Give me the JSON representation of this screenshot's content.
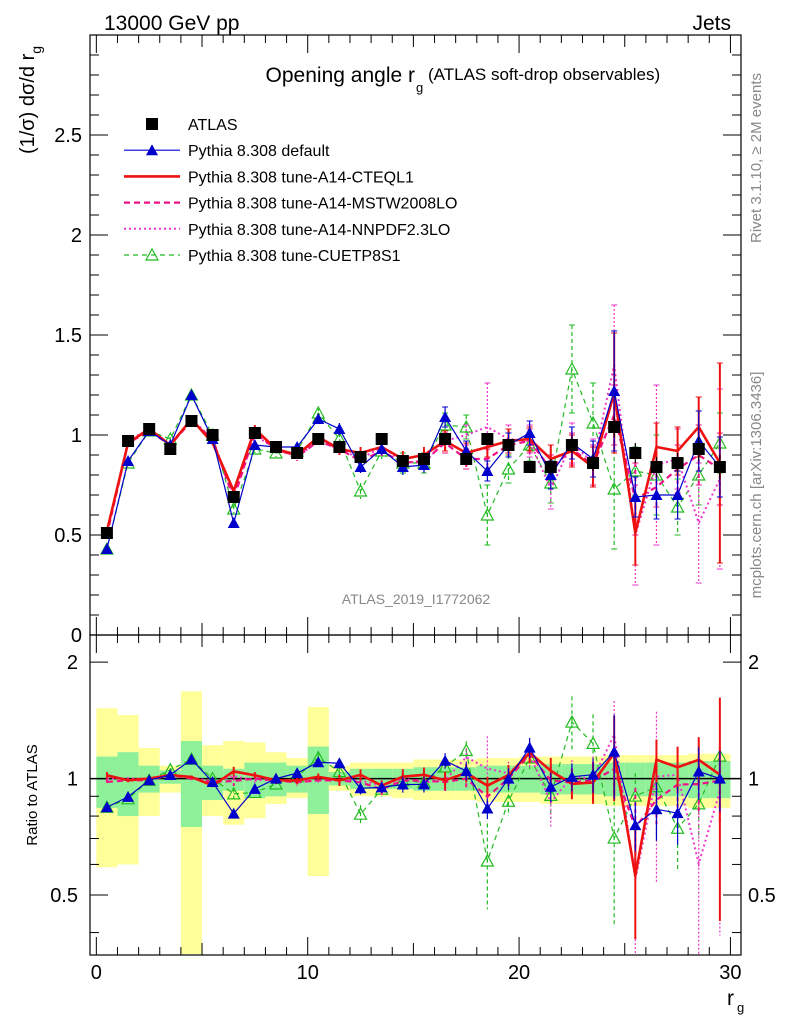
{
  "header": {
    "left": "13000 GeV pp",
    "right": "Jets"
  },
  "side": {
    "rivet": "Rivet 3.1.10, ≥ 2M events",
    "mcplots": "mcplots.cern.ch [arXiv:1306.3436]"
  },
  "watermark": "ATLAS_2019_I1772062",
  "colors": {
    "atlas": "#000000",
    "default": "#0000cc",
    "cteql1": "#ee1111",
    "mstw": "#ee1188",
    "nnpdf": "#ee33cc",
    "cuetp8s1": "#22bb22",
    "band_inner": "#8ff09a",
    "band_outer": "#ffff99"
  },
  "chart_data": [
    {
      "type": "line",
      "title": "Opening angle r",
      "title_sub": "g",
      "title_suffix": "(ATLAS soft-drop observables)",
      "ylabel": "(1/σ) dσ/d r",
      "ylabel_sub": "g",
      "ylim": [
        0,
        3
      ],
      "yticks": [
        "0.5",
        "1",
        "1.5",
        "2",
        "2.5"
      ],
      "ytick_values": [
        0.5,
        1,
        1.5,
        2,
        2.5
      ],
      "zero_label": "0",
      "x": [
        0.5,
        1.5,
        2.5,
        3.5,
        4.5,
        5.5,
        6.5,
        7.5,
        8.5,
        9.5,
        10.5,
        11.5,
        12.5,
        13.5,
        14.5,
        15.5,
        16.5,
        17.5,
        18.5,
        19.5,
        20.5,
        21.5,
        22.5,
        23.5,
        24.5,
        25.5,
        26.5,
        27.5,
        28.5,
        29.5
      ],
      "series": [
        {
          "name": "ATLAS",
          "key": "atlas",
          "style": "square",
          "values": [
            0.51,
            0.97,
            1.03,
            0.93,
            1.07,
            1.0,
            0.69,
            1.01,
            0.94,
            0.91,
            0.98,
            0.94,
            0.89,
            0.98,
            0.87,
            0.88,
            0.98,
            0.88,
            0.98,
            0.95,
            0.84,
            0.84,
            0.95,
            0.86,
            1.04,
            0.91,
            0.84,
            0.86,
            0.93,
            0.84
          ],
          "errors": [
            0.02,
            0.02,
            0.02,
            0.02,
            0.03,
            0.03,
            0.03,
            0.03,
            0.03,
            0.03,
            0.03,
            0.03,
            0.03,
            0.03,
            0.03,
            0.03,
            0.03,
            0.03,
            0.03,
            0.03,
            0.03,
            0.04,
            0.04,
            0.04,
            0.05,
            0.05,
            0.05,
            0.05,
            0.06,
            0.06
          ]
        },
        {
          "name": "Pythia 8.308 default",
          "key": "default",
          "style": "tri-filled",
          "values": [
            0.43,
            0.87,
            1.02,
            0.95,
            1.2,
            0.98,
            0.56,
            0.95,
            0.94,
            0.94,
            1.08,
            1.03,
            0.84,
            0.93,
            0.84,
            0.85,
            1.09,
            0.92,
            0.82,
            0.95,
            1.01,
            0.8,
            0.96,
            0.88,
            1.22,
            0.69,
            0.7,
            0.7,
            0.97,
            0.84
          ],
          "errors": [
            0.01,
            0.01,
            0.01,
            0.01,
            0.01,
            0.01,
            0.01,
            0.02,
            0.02,
            0.02,
            0.02,
            0.03,
            0.03,
            0.03,
            0.04,
            0.04,
            0.05,
            0.05,
            0.05,
            0.06,
            0.06,
            0.07,
            0.08,
            0.09,
            0.3,
            0.1,
            0.12,
            0.12,
            0.15,
            0.15
          ]
        },
        {
          "name": "Pythia 8.308 tune-A14-CTEQL1",
          "key": "cteql1",
          "style": "solid-thick",
          "values": [
            0.52,
            0.96,
            1.03,
            0.95,
            1.08,
            0.96,
            0.72,
            1.03,
            0.93,
            0.9,
            0.99,
            0.93,
            0.91,
            0.94,
            0.88,
            0.9,
            0.97,
            0.91,
            0.94,
            0.97,
            0.98,
            0.88,
            0.92,
            0.84,
            1.21,
            0.51,
            0.94,
            0.92,
            1.04,
            0.86
          ],
          "errors": [
            0.01,
            0.01,
            0.01,
            0.01,
            0.01,
            0.01,
            0.02,
            0.02,
            0.02,
            0.02,
            0.02,
            0.03,
            0.03,
            0.03,
            0.04,
            0.04,
            0.05,
            0.05,
            0.05,
            0.06,
            0.06,
            0.07,
            0.08,
            0.1,
            0.3,
            0.16,
            0.12,
            0.12,
            0.15,
            0.5
          ]
        },
        {
          "name": "Pythia 8.308 tune-A14-MSTW2008LO",
          "key": "mstw",
          "style": "dashed",
          "values": [
            0.5,
            0.96,
            1.02,
            0.95,
            1.07,
            0.98,
            0.68,
            1.01,
            0.93,
            0.89,
            0.97,
            0.93,
            0.87,
            0.92,
            0.86,
            0.87,
            0.96,
            0.88,
            0.88,
            0.95,
            0.97,
            0.83,
            0.93,
            0.85,
            1.1,
            0.68,
            0.74,
            0.83,
            0.9,
            0.83
          ],
          "errors": [
            0.01,
            0.01,
            0.01,
            0.01,
            0.01,
            0.01,
            0.02,
            0.02,
            0.02,
            0.02,
            0.02,
            0.03,
            0.03,
            0.03,
            0.04,
            0.04,
            0.05,
            0.05,
            0.05,
            0.06,
            0.06,
            0.07,
            0.08,
            0.1,
            0.15,
            0.18,
            0.1,
            0.12,
            0.15,
            0.18
          ]
        },
        {
          "name": "Pythia 8.308 tune-A14-NNPDF2.3LO",
          "key": "nnpdf",
          "style": "dotted",
          "values": [
            0.51,
            0.97,
            1.03,
            0.95,
            1.08,
            0.98,
            0.7,
            1.0,
            0.93,
            0.89,
            0.97,
            0.93,
            0.88,
            0.94,
            0.87,
            0.86,
            0.97,
            1.0,
            1.04,
            0.98,
            0.97,
            0.73,
            0.96,
            0.86,
            1.35,
            0.5,
            0.85,
            0.88,
            0.56,
            0.78
          ],
          "errors": [
            0.01,
            0.01,
            0.01,
            0.01,
            0.01,
            0.01,
            0.02,
            0.02,
            0.02,
            0.02,
            0.02,
            0.03,
            0.03,
            0.03,
            0.04,
            0.04,
            0.05,
            0.05,
            0.22,
            0.07,
            0.08,
            0.1,
            0.1,
            0.12,
            0.3,
            0.25,
            0.4,
            0.15,
            0.3,
            0.45
          ]
        },
        {
          "name": "Pythia 8.308 tune-CUETP8S1",
          "key": "cuetp8s1",
          "style": "tri-open",
          "values": [
            0.43,
            0.86,
            1.02,
            0.98,
            1.2,
            1.0,
            0.63,
            0.93,
            0.91,
            0.92,
            1.11,
            0.98,
            0.72,
            0.92,
            0.86,
            0.86,
            1.05,
            1.04,
            0.6,
            0.83,
            0.95,
            0.76,
            1.33,
            1.06,
            0.73,
            0.82,
            0.8,
            0.64,
            0.8,
            0.96
          ],
          "errors": [
            0.01,
            0.01,
            0.01,
            0.01,
            0.01,
            0.01,
            0.02,
            0.02,
            0.02,
            0.02,
            0.03,
            0.03,
            0.04,
            0.04,
            0.05,
            0.05,
            0.06,
            0.06,
            0.15,
            0.07,
            0.08,
            0.1,
            0.22,
            0.2,
            0.3,
            0.12,
            0.2,
            0.14,
            0.15,
            0.15
          ]
        }
      ]
    },
    {
      "type": "line",
      "ylabel": "Ratio to ATLAS",
      "xlabel": "r",
      "xlabel_sub": "g",
      "xlim": [
        -0.3,
        30.5
      ],
      "xticks": [
        "0",
        "10",
        "20",
        "30"
      ],
      "xtick_values": [
        0,
        10,
        20,
        30
      ],
      "ylim": [
        0.35,
        2.35
      ],
      "yticks": [
        "0.5",
        "1",
        "2"
      ],
      "ytick_values": [
        0.5,
        1,
        2
      ],
      "band_inner": [
        [
          0.84,
          1.14
        ],
        [
          0.8,
          1.17
        ],
        [
          0.92,
          1.08
        ],
        [
          0.97,
          1.05
        ],
        [
          0.75,
          1.25
        ],
        [
          0.88,
          1.08
        ],
        [
          0.93,
          1.06
        ],
        [
          0.89,
          1.1
        ],
        [
          0.9,
          1.1
        ],
        [
          0.92,
          1.08
        ],
        [
          0.81,
          1.21
        ],
        [
          0.96,
          1.04
        ],
        [
          0.94,
          1.06
        ],
        [
          0.94,
          1.06
        ],
        [
          0.94,
          1.06
        ],
        [
          0.93,
          1.07
        ],
        [
          0.93,
          1.07
        ],
        [
          0.93,
          1.07
        ],
        [
          0.92,
          1.08
        ],
        [
          0.92,
          1.08
        ],
        [
          0.92,
          1.08
        ],
        [
          0.91,
          1.09
        ],
        [
          0.91,
          1.09
        ],
        [
          0.91,
          1.09
        ],
        [
          0.9,
          1.1
        ],
        [
          0.9,
          1.1
        ],
        [
          0.9,
          1.1
        ],
        [
          0.9,
          1.1
        ],
        [
          0.89,
          1.11
        ],
        [
          0.89,
          1.11
        ]
      ],
      "band_outer": [
        [
          0.59,
          1.52
        ],
        [
          0.6,
          1.46
        ],
        [
          0.8,
          1.2
        ],
        [
          0.92,
          1.08
        ],
        [
          0.35,
          1.68
        ],
        [
          0.8,
          1.22
        ],
        [
          0.76,
          1.25
        ],
        [
          0.79,
          1.24
        ],
        [
          0.86,
          1.17
        ],
        [
          0.89,
          1.13
        ],
        [
          0.56,
          1.53
        ],
        [
          0.93,
          1.08
        ],
        [
          0.9,
          1.1
        ],
        [
          0.9,
          1.1
        ],
        [
          0.89,
          1.1
        ],
        [
          0.88,
          1.12
        ],
        [
          0.88,
          1.12
        ],
        [
          0.88,
          1.12
        ],
        [
          0.87,
          1.13
        ],
        [
          0.87,
          1.13
        ],
        [
          0.87,
          1.14
        ],
        [
          0.86,
          1.14
        ],
        [
          0.86,
          1.14
        ],
        [
          0.86,
          1.14
        ],
        [
          0.85,
          1.15
        ],
        [
          0.85,
          1.15
        ],
        [
          0.85,
          1.15
        ],
        [
          0.85,
          1.15
        ],
        [
          0.84,
          1.16
        ],
        [
          0.84,
          1.16
        ]
      ]
    }
  ]
}
